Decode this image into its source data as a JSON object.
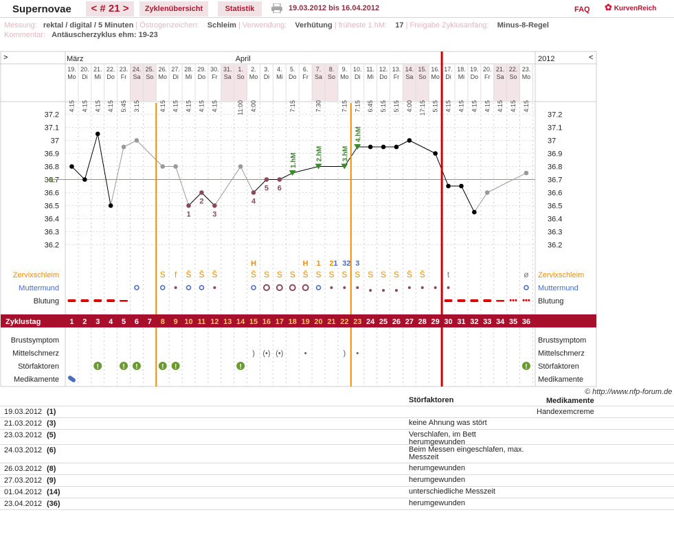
{
  "header": {
    "title": "Supernovae",
    "cycle_label": "< # 21 >",
    "tab_overview": "Zyklenübersicht",
    "tab_stats": "Statistik",
    "date_range": "19.03.2012 bis 16.04.2012",
    "faq": "FAQ",
    "logo": "KurvenReich"
  },
  "meta": {
    "messung_k": "Messung:",
    "messung_v": "rektal / digital / 5 Minuten",
    "oestro_k": "Östrogenzeichen:",
    "oestro_v": "Schleim",
    "verw_k": "Verwendung:",
    "verw_v": "Verhütung",
    "hm_k": "früheste 1.hM:",
    "hm_v": "17",
    "frei_k": "Freigabe Zyklusanfang:",
    "frei_v": "Minus-8-Regel",
    "komm_k": "Kommentar:",
    "komm_v": "Antäuscherzyklus ehm: 19-23"
  },
  "nav": {
    "left": ">",
    "right": "<",
    "year": "2012"
  },
  "chart_data": {
    "type": "line",
    "months": [
      {
        "label": "März",
        "col": 0
      },
      {
        "label": "April",
        "col": 13
      }
    ],
    "dates": [
      "19.",
      "20.",
      "21.",
      "22.",
      "23.",
      "24.",
      "25.",
      "26.",
      "27.",
      "28.",
      "29.",
      "30.",
      "31.",
      "1.",
      "2.",
      "3.",
      "4.",
      "5.",
      "6.",
      "7.",
      "8.",
      "9.",
      "10.",
      "11.",
      "12.",
      "13.",
      "14.",
      "15.",
      "16.",
      "17.",
      "18.",
      "19.",
      "20.",
      "21.",
      "22.",
      "23."
    ],
    "weekdays": [
      "Mo",
      "Di",
      "Mi",
      "Do",
      "Fr",
      "Sa",
      "So",
      "Mo",
      "Di",
      "Mi",
      "Do",
      "Fr",
      "Sa",
      "So",
      "Mo",
      "Di",
      "Mi",
      "Do",
      "Fr",
      "Sa",
      "So",
      "Mo",
      "Di",
      "Mi",
      "Do",
      "Fr",
      "Sa",
      "So",
      "Mo",
      "Di",
      "Mi",
      "Do",
      "Fr",
      "Sa",
      "So",
      "Mo"
    ],
    "times": [
      "4:15",
      "4:15",
      "4:15",
      "4:15",
      "5:45",
      "3:15",
      "",
      "4:15",
      "4:15",
      "4:15",
      "4:15",
      "4:15",
      "",
      "11:00",
      "4:00",
      "",
      "",
      "7:15",
      "",
      "7:30",
      "",
      "7:15",
      "7:15",
      "6:45",
      "5:15",
      "5:15",
      "4:00",
      "17:15",
      "5:15",
      "4:15",
      "4:15",
      "4:15",
      "4:15",
      "4:15",
      "4:15",
      "4:15"
    ],
    "cycle_days": [
      1,
      2,
      3,
      4,
      5,
      6,
      7,
      8,
      9,
      10,
      11,
      12,
      13,
      14,
      15,
      16,
      17,
      18,
      19,
      20,
      21,
      22,
      23,
      24,
      25,
      26,
      27,
      28,
      29,
      30,
      31,
      32,
      33,
      34,
      35,
      36
    ],
    "temperatures": [
      36.8,
      36.7,
      37.05,
      36.5,
      36.95,
      37.0,
      null,
      36.8,
      36.8,
      36.5,
      36.6,
      36.5,
      null,
      36.8,
      36.6,
      36.7,
      36.7,
      36.75,
      null,
      36.8,
      null,
      36.8,
      36.95,
      36.95,
      36.95,
      36.95,
      37.0,
      null,
      36.9,
      36.65,
      36.65,
      36.45,
      36.6,
      null,
      null,
      36.75
    ],
    "excluded": [
      false,
      false,
      false,
      false,
      true,
      true,
      false,
      true,
      true,
      false,
      false,
      false,
      false,
      true,
      false,
      false,
      false,
      false,
      false,
      false,
      false,
      false,
      false,
      false,
      false,
      false,
      false,
      false,
      false,
      false,
      false,
      false,
      true,
      false,
      false,
      true
    ],
    "yticks": [
      36.2,
      36.3,
      36.4,
      36.5,
      36.6,
      36.7,
      36.8,
      36.9,
      37,
      37.1,
      37.2
    ],
    "ylim": [
      36.12,
      37.28
    ],
    "coverline": 36.7,
    "coverline_label": "HL",
    "lower_labels": [
      {
        "day": 10,
        "text": "1"
      },
      {
        "day": 11,
        "text": "2"
      },
      {
        "day": 12,
        "text": "3"
      },
      {
        "day": 15,
        "text": "4"
      },
      {
        "day": 16,
        "text": "5"
      },
      {
        "day": 17,
        "text": "6"
      }
    ],
    "high_labels": [
      {
        "day": 18,
        "text": "1.hM"
      },
      {
        "day": 20,
        "text": "2.hM"
      },
      {
        "day": 22,
        "text": "3.hM"
      },
      {
        "day": 23,
        "text": "4.hM"
      }
    ],
    "orange_lines": [
      8,
      23
    ],
    "red_line": 30,
    "row_labels": {
      "cervix": "Zervixschleim",
      "mm": "Muttermund",
      "blood": "Blutung",
      "cycle": "Zyklustag",
      "breast": "Brustsymptom",
      "mittel": "Mittelschmerz",
      "stoer": "Störfaktoren",
      "medi": "Medikamente"
    },
    "cervix_top": [
      {
        "day": 15,
        "t": "H",
        "c": "#f08c00"
      },
      {
        "day": 19,
        "t": "H",
        "c": "#f08c00"
      },
      {
        "day": 20,
        "t": "1",
        "c": "#f08c00"
      },
      {
        "day": 21,
        "t": "2",
        "c": "#f08c00"
      },
      {
        "day": 21,
        "t": "1",
        "c": "#4a6cc0",
        "dx": 6
      },
      {
        "day": 22,
        "t": "3",
        "c": "#4a6cc0"
      },
      {
        "day": 22,
        "t": "2",
        "c": "#4a6cc0",
        "dx": 6
      },
      {
        "day": 23,
        "t": "3",
        "c": "#4a6cc0"
      }
    ],
    "cervix": {
      "8": "S",
      "9": "f",
      "10": "S̄",
      "11": "S̄",
      "12": "S̄",
      "15": "S̄",
      "16": "S",
      "17": "S",
      "18": "S",
      "19": "S̄",
      "20": "S",
      "21": "S",
      "22": "S",
      "23": "S",
      "24": "S",
      "25": "S",
      "26": "S",
      "27": "S̄",
      "28": "S̄",
      "30": "t",
      "36": "ø"
    },
    "mm": {
      "6": "o",
      "8": "o",
      "9": "•",
      "10": "o",
      "11": "o",
      "12": "•",
      "15": "o",
      "16": "O",
      "17": "O",
      "18": "O",
      "19": "O",
      "20": "o",
      "21": "•",
      "22": "•",
      "23": "•",
      "24": "•",
      "25": "•",
      "26": "•",
      "27": "•",
      "28": "•",
      "29": "•",
      "30": "•",
      "36": "o"
    },
    "bleeding": {
      "1": "=",
      "2": "=",
      "3": "=",
      "4": "=",
      "5": "-",
      "30": "=",
      "31": "=",
      "32": "=",
      "33": "=",
      "34": "-",
      "35": "…",
      "36": "…"
    },
    "mittel": {
      "15": ")",
      "16": "(•)",
      "17": "(•)",
      "19": "•",
      "22": ")",
      "23": "•"
    },
    "stoer": [
      3,
      5,
      6,
      8,
      9,
      14,
      36
    ],
    "medi": [
      1
    ]
  },
  "credit": "© http://www.nfp-forum.de",
  "table": {
    "h_stoer": "Störfaktoren",
    "h_medi": "Medikamente",
    "rows": [
      {
        "date": "19.03.2012",
        "num": "(1)",
        "stoer": "",
        "medi": "Handexemcreme"
      },
      {
        "date": "21.03.2012",
        "num": "(3)",
        "stoer": "keine Ahnung was stört",
        "medi": ""
      },
      {
        "date": "23.03.2012",
        "num": "(5)",
        "stoer": "Verschlafen,  im Bett herumgewunden",
        "medi": ""
      },
      {
        "date": "24.03.2012",
        "num": "(6)",
        "stoer": "Beim Messen eingeschlafen, max. Messzeit",
        "medi": ""
      },
      {
        "date": "26.03.2012",
        "num": "(8)",
        "stoer": "herumgewunden",
        "medi": ""
      },
      {
        "date": "27.03.2012",
        "num": "(9)",
        "stoer": "herumgewunden",
        "medi": ""
      },
      {
        "date": "01.04.2012",
        "num": "(14)",
        "stoer": "unterschiedliche Messzeit",
        "medi": ""
      },
      {
        "date": "23.04.2012",
        "num": "(36)",
        "stoer": "herumgewunden",
        "medi": ""
      }
    ]
  }
}
